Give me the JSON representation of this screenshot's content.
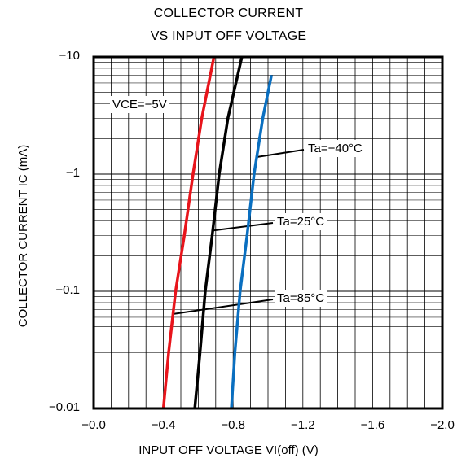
{
  "chart_data": {
    "type": "line",
    "title": [
      "COLLECTOR CURRENT",
      "VS INPUT OFF VOLTAGE"
    ],
    "xlabel": "INPUT OFF VOLTAGE VI(off) (V)",
    "ylabel": "COLLECTOR CURRENT IC (mA)",
    "x_scale": "linear",
    "y_scale": "log",
    "xlim": [
      0.0,
      -2.0
    ],
    "ylim": [
      -0.01,
      -10
    ],
    "x_tick_labels": [
      "−0.0",
      "−0.4",
      "−0.8",
      "−1.2",
      "−1.6",
      "−2.0"
    ],
    "y_tick_labels": [
      "−10",
      "−1",
      "−0.1",
      "−0.01"
    ],
    "grid": true,
    "condition_label": "VCE=−5V",
    "series": [
      {
        "name": "Ta=85°C",
        "color": "#e8141b",
        "points": [
          [
            -0.4,
            -0.01
          ],
          [
            -0.43,
            -0.03
          ],
          [
            -0.47,
            -0.1
          ],
          [
            -0.52,
            -0.3
          ],
          [
            -0.57,
            -1
          ],
          [
            -0.62,
            -3
          ],
          [
            -0.69,
            -10
          ]
        ]
      },
      {
        "name": "Ta=25°C",
        "color": "#000000",
        "points": [
          [
            -0.58,
            -0.01
          ],
          [
            -0.61,
            -0.03
          ],
          [
            -0.64,
            -0.1
          ],
          [
            -0.68,
            -0.3
          ],
          [
            -0.72,
            -1
          ],
          [
            -0.77,
            -3
          ],
          [
            -0.85,
            -10
          ]
        ]
      },
      {
        "name": "Ta=−40°C",
        "color": "#0a6fc0",
        "points": [
          [
            -0.79,
            -0.01
          ],
          [
            -0.81,
            -0.03
          ],
          [
            -0.84,
            -0.1
          ],
          [
            -0.88,
            -0.3
          ],
          [
            -0.92,
            -1
          ],
          [
            -0.97,
            -3
          ],
          [
            -1.02,
            -7
          ]
        ]
      }
    ],
    "annotations": [
      {
        "text": "Ta=−40°C",
        "series": "Ta=−40°C"
      },
      {
        "text": "Ta=25°C",
        "series": "Ta=25°C"
      },
      {
        "text": "Ta=85°C",
        "series": "Ta=85°C"
      }
    ]
  }
}
